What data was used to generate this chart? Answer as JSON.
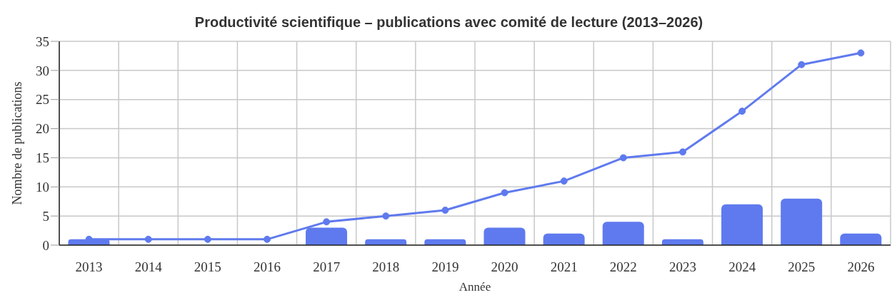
{
  "chart_data": {
    "type": "bar",
    "title": "Productivité scientifique – publications avec comité de lecture (2013–2026)",
    "xlabel": "Année",
    "ylabel": "Nombre de publications",
    "categories": [
      "2013",
      "2014",
      "2015",
      "2016",
      "2017",
      "2018",
      "2019",
      "2020",
      "2021",
      "2022",
      "2023",
      "2024",
      "2025",
      "2026"
    ],
    "series": [
      {
        "color": "#5f7aee",
        "values": [
          1,
          0,
          0,
          0,
          3,
          1,
          1,
          3,
          2,
          4,
          1,
          7,
          8,
          2
        ]
      },
      {
        "type": "line",
        "color": "#5f7aee",
        "marker": "circle",
        "values": [
          1,
          1,
          1,
          1,
          4,
          5,
          6,
          9,
          11,
          15,
          16,
          23,
          31,
          33
        ]
      }
    ],
    "ylim": [
      0,
      35
    ],
    "yticks": [
      0,
      5,
      10,
      15,
      20,
      25,
      30,
      35
    ],
    "grid": true
  }
}
